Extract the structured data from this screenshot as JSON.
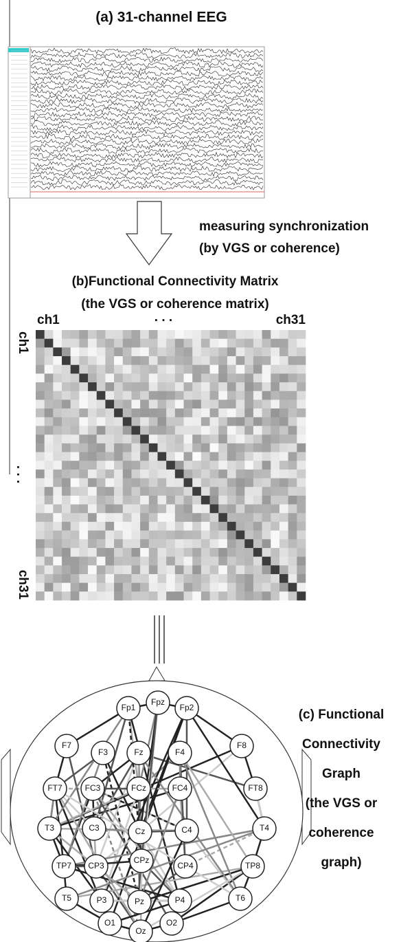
{
  "panel_a": {
    "title": "(a)  31-channel EEG"
  },
  "arrow_text": [
    "measuring synchronization",
    "(by VGS or coherence)"
  ],
  "panel_b": {
    "title": [
      "(b)Functional Connectivity Matrix",
      "(the VGS or coherence matrix)"
    ],
    "top_labels": [
      "ch1",
      ". . .",
      "ch31"
    ],
    "side_labels": [
      "ch1",
      ". . .",
      "ch31"
    ]
  },
  "panel_c": {
    "caption": [
      "(c) Functional",
      "Connectivity",
      "Graph",
      "(the VGS or",
      "coherence",
      "graph)"
    ],
    "nodes": [
      {
        "label": "Fp1"
      },
      {
        "label": "Fpz"
      },
      {
        "label": "Fp2"
      },
      {
        "label": "F7"
      },
      {
        "label": "F3"
      },
      {
        "label": "Fz"
      },
      {
        "label": "F4"
      },
      {
        "label": "F8"
      },
      {
        "label": "FT7"
      },
      {
        "label": "FC3"
      },
      {
        "label": "FCz"
      },
      {
        "label": "FC4"
      },
      {
        "label": "FT8"
      },
      {
        "label": "T3"
      },
      {
        "label": "C3"
      },
      {
        "label": "Cz"
      },
      {
        "label": "C4"
      },
      {
        "label": "T4"
      },
      {
        "label": "TP7"
      },
      {
        "label": "CP3"
      },
      {
        "label": "CPz"
      },
      {
        "label": "CP4"
      },
      {
        "label": "TP8"
      },
      {
        "label": "T5"
      },
      {
        "label": "P3"
      },
      {
        "label": "Pz"
      },
      {
        "label": "P4"
      },
      {
        "label": "T6"
      },
      {
        "label": "O1"
      },
      {
        "label": "Oz"
      },
      {
        "label": "O2"
      }
    ]
  }
}
